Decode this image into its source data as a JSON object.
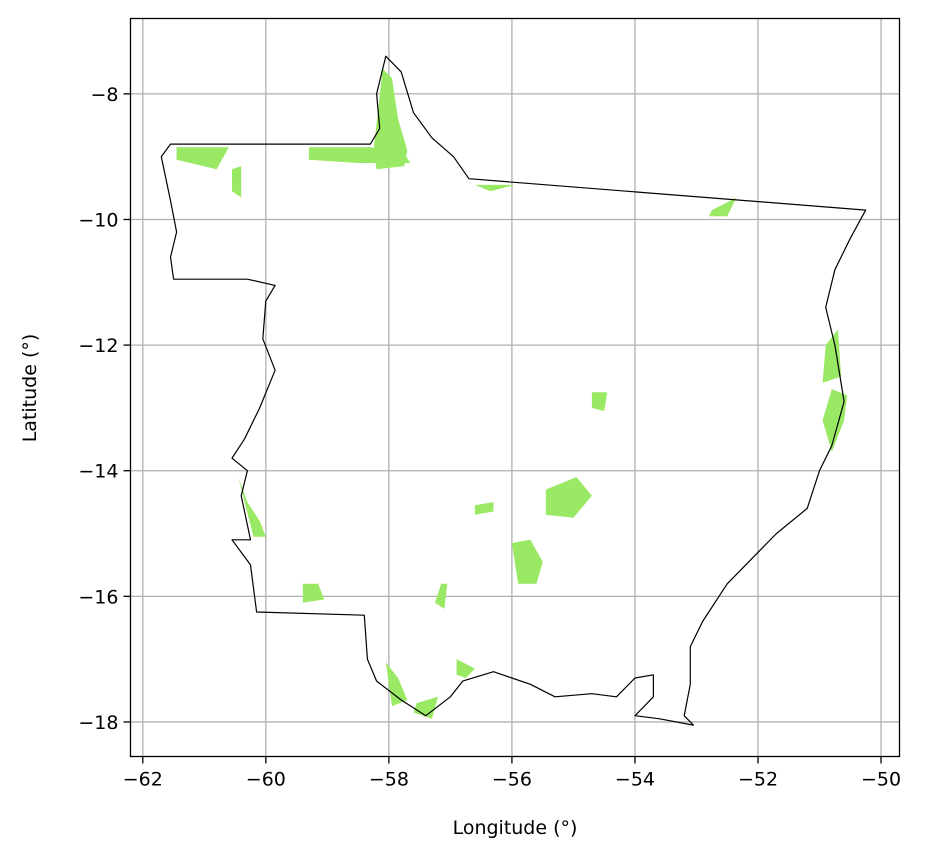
{
  "chart_data": {
    "type": "map",
    "title": "",
    "xlabel": "Longitude (°)",
    "ylabel": "Latitude (°)",
    "xlim": [
      -62.2,
      -49.7
    ],
    "ylim": [
      -18.55,
      -6.8
    ],
    "xticks": [
      -62,
      -60,
      -58,
      -56,
      -54,
      -52,
      -50
    ],
    "yticks": [
      -8,
      -10,
      -12,
      -14,
      -16,
      -18
    ],
    "xtick_labels": [
      "−62",
      "−60",
      "−58",
      "−56",
      "−54",
      "−52",
      "−50"
    ],
    "ytick_labels": [
      "−8",
      "−10",
      "−12",
      "−14",
      "−16",
      "−18"
    ],
    "grid": true,
    "boundary_color": "#000000",
    "fill_color": "#9ae964",
    "boundary": [
      [
        -61.55,
        -8.8
      ],
      [
        -58.3,
        -8.8
      ],
      [
        -58.15,
        -8.55
      ],
      [
        -58.2,
        -8.0
      ],
      [
        -58.05,
        -7.4
      ],
      [
        -57.8,
        -7.65
      ],
      [
        -57.6,
        -8.3
      ],
      [
        -57.3,
        -8.7
      ],
      [
        -56.95,
        -9.0
      ],
      [
        -56.7,
        -9.35
      ],
      [
        -50.25,
        -9.85
      ],
      [
        -50.5,
        -10.3
      ],
      [
        -50.75,
        -10.8
      ],
      [
        -50.9,
        -11.4
      ],
      [
        -50.75,
        -12.0
      ],
      [
        -50.6,
        -12.9
      ],
      [
        -50.8,
        -13.6
      ],
      [
        -51.0,
        -14.0
      ],
      [
        -51.2,
        -14.6
      ],
      [
        -51.7,
        -15.0
      ],
      [
        -52.2,
        -15.5
      ],
      [
        -52.5,
        -15.8
      ],
      [
        -52.9,
        -16.4
      ],
      [
        -53.1,
        -16.8
      ],
      [
        -53.1,
        -17.4
      ],
      [
        -53.2,
        -17.9
      ],
      [
        -53.05,
        -18.05
      ],
      [
        -53.6,
        -17.95
      ],
      [
        -54.0,
        -17.9
      ],
      [
        -53.7,
        -17.6
      ],
      [
        -53.7,
        -17.25
      ],
      [
        -54.0,
        -17.3
      ],
      [
        -54.3,
        -17.6
      ],
      [
        -54.7,
        -17.55
      ],
      [
        -55.3,
        -17.6
      ],
      [
        -55.7,
        -17.4
      ],
      [
        -56.0,
        -17.3
      ],
      [
        -56.3,
        -17.2
      ],
      [
        -56.8,
        -17.35
      ],
      [
        -57.0,
        -17.6
      ],
      [
        -57.4,
        -17.9
      ],
      [
        -57.8,
        -17.65
      ],
      [
        -58.2,
        -17.35
      ],
      [
        -58.35,
        -17.0
      ],
      [
        -58.4,
        -16.3
      ],
      [
        -60.15,
        -16.25
      ],
      [
        -60.25,
        -15.5
      ],
      [
        -60.55,
        -15.1
      ],
      [
        -60.25,
        -15.1
      ],
      [
        -60.4,
        -14.4
      ],
      [
        -60.3,
        -14.0
      ],
      [
        -60.55,
        -13.8
      ],
      [
        -60.35,
        -13.5
      ],
      [
        -60.1,
        -13.0
      ],
      [
        -59.85,
        -12.4
      ],
      [
        -60.05,
        -11.9
      ],
      [
        -60.0,
        -11.3
      ],
      [
        -59.85,
        -11.05
      ],
      [
        -60.3,
        -10.95
      ],
      [
        -61.5,
        -10.95
      ],
      [
        -61.55,
        -10.6
      ],
      [
        -61.45,
        -10.2
      ],
      [
        -61.55,
        -9.7
      ],
      [
        -61.7,
        -9.0
      ],
      [
        -61.55,
        -8.8
      ]
    ],
    "areas": [
      [
        [
          -58.25,
          -8.9
        ],
        [
          -58.1,
          -7.6
        ],
        [
          -57.95,
          -7.75
        ],
        [
          -57.85,
          -8.4
        ],
        [
          -57.7,
          -8.9
        ],
        [
          -57.75,
          -9.15
        ],
        [
          -58.2,
          -9.2
        ]
      ],
      [
        [
          -59.3,
          -8.85
        ],
        [
          -58.3,
          -8.85
        ],
        [
          -57.75,
          -8.95
        ],
        [
          -57.65,
          -9.1
        ],
        [
          -58.5,
          -9.1
        ],
        [
          -59.3,
          -9.05
        ]
      ],
      [
        [
          -61.45,
          -8.85
        ],
        [
          -60.6,
          -8.85
        ],
        [
          -60.8,
          -9.2
        ],
        [
          -61.45,
          -9.05
        ]
      ],
      [
        [
          -60.55,
          -9.2
        ],
        [
          -60.4,
          -9.15
        ],
        [
          -60.4,
          -9.65
        ],
        [
          -60.55,
          -9.55
        ]
      ],
      [
        [
          -56.6,
          -9.45
        ],
        [
          -55.95,
          -9.45
        ],
        [
          -56.35,
          -9.55
        ]
      ],
      [
        [
          -52.75,
          -9.85
        ],
        [
          -52.35,
          -9.65
        ],
        [
          -52.5,
          -9.95
        ],
        [
          -52.8,
          -9.95
        ]
      ],
      [
        [
          -50.9,
          -12.0
        ],
        [
          -50.7,
          -11.75
        ],
        [
          -50.65,
          -12.5
        ],
        [
          -50.95,
          -12.6
        ]
      ],
      [
        [
          -50.8,
          -12.7
        ],
        [
          -50.55,
          -12.8
        ],
        [
          -50.6,
          -13.2
        ],
        [
          -50.8,
          -13.7
        ],
        [
          -50.95,
          -13.2
        ]
      ],
      [
        [
          -54.7,
          -12.75
        ],
        [
          -54.45,
          -12.75
        ],
        [
          -54.5,
          -13.05
        ],
        [
          -54.7,
          -13.0
        ]
      ],
      [
        [
          -55.45,
          -14.3
        ],
        [
          -54.95,
          -14.1
        ],
        [
          -54.7,
          -14.4
        ],
        [
          -55.0,
          -14.75
        ],
        [
          -55.45,
          -14.7
        ]
      ],
      [
        [
          -56.6,
          -14.55
        ],
        [
          -56.3,
          -14.5
        ],
        [
          -56.3,
          -14.65
        ],
        [
          -56.6,
          -14.7
        ]
      ],
      [
        [
          -56.0,
          -15.15
        ],
        [
          -55.7,
          -15.1
        ],
        [
          -55.5,
          -15.45
        ],
        [
          -55.6,
          -15.8
        ],
        [
          -55.9,
          -15.8
        ]
      ],
      [
        [
          -60.45,
          -14.1
        ],
        [
          -60.3,
          -14.5
        ],
        [
          -60.1,
          -14.8
        ],
        [
          -60.0,
          -15.05
        ],
        [
          -60.2,
          -15.05
        ]
      ],
      [
        [
          -59.4,
          -15.8
        ],
        [
          -59.15,
          -15.8
        ],
        [
          -59.05,
          -16.05
        ],
        [
          -59.4,
          -16.1
        ]
      ],
      [
        [
          -57.15,
          -15.8
        ],
        [
          -57.05,
          -15.8
        ],
        [
          -57.1,
          -16.2
        ],
        [
          -57.25,
          -16.1
        ]
      ],
      [
        [
          -58.05,
          -17.05
        ],
        [
          -57.85,
          -17.3
        ],
        [
          -57.7,
          -17.65
        ],
        [
          -57.95,
          -17.75
        ]
      ],
      [
        [
          -57.55,
          -17.7
        ],
        [
          -57.2,
          -17.6
        ],
        [
          -57.3,
          -17.95
        ],
        [
          -57.6,
          -17.85
        ]
      ],
      [
        [
          -56.9,
          -17.0
        ],
        [
          -56.6,
          -17.15
        ],
        [
          -56.75,
          -17.3
        ],
        [
          -56.9,
          -17.25
        ]
      ]
    ]
  }
}
